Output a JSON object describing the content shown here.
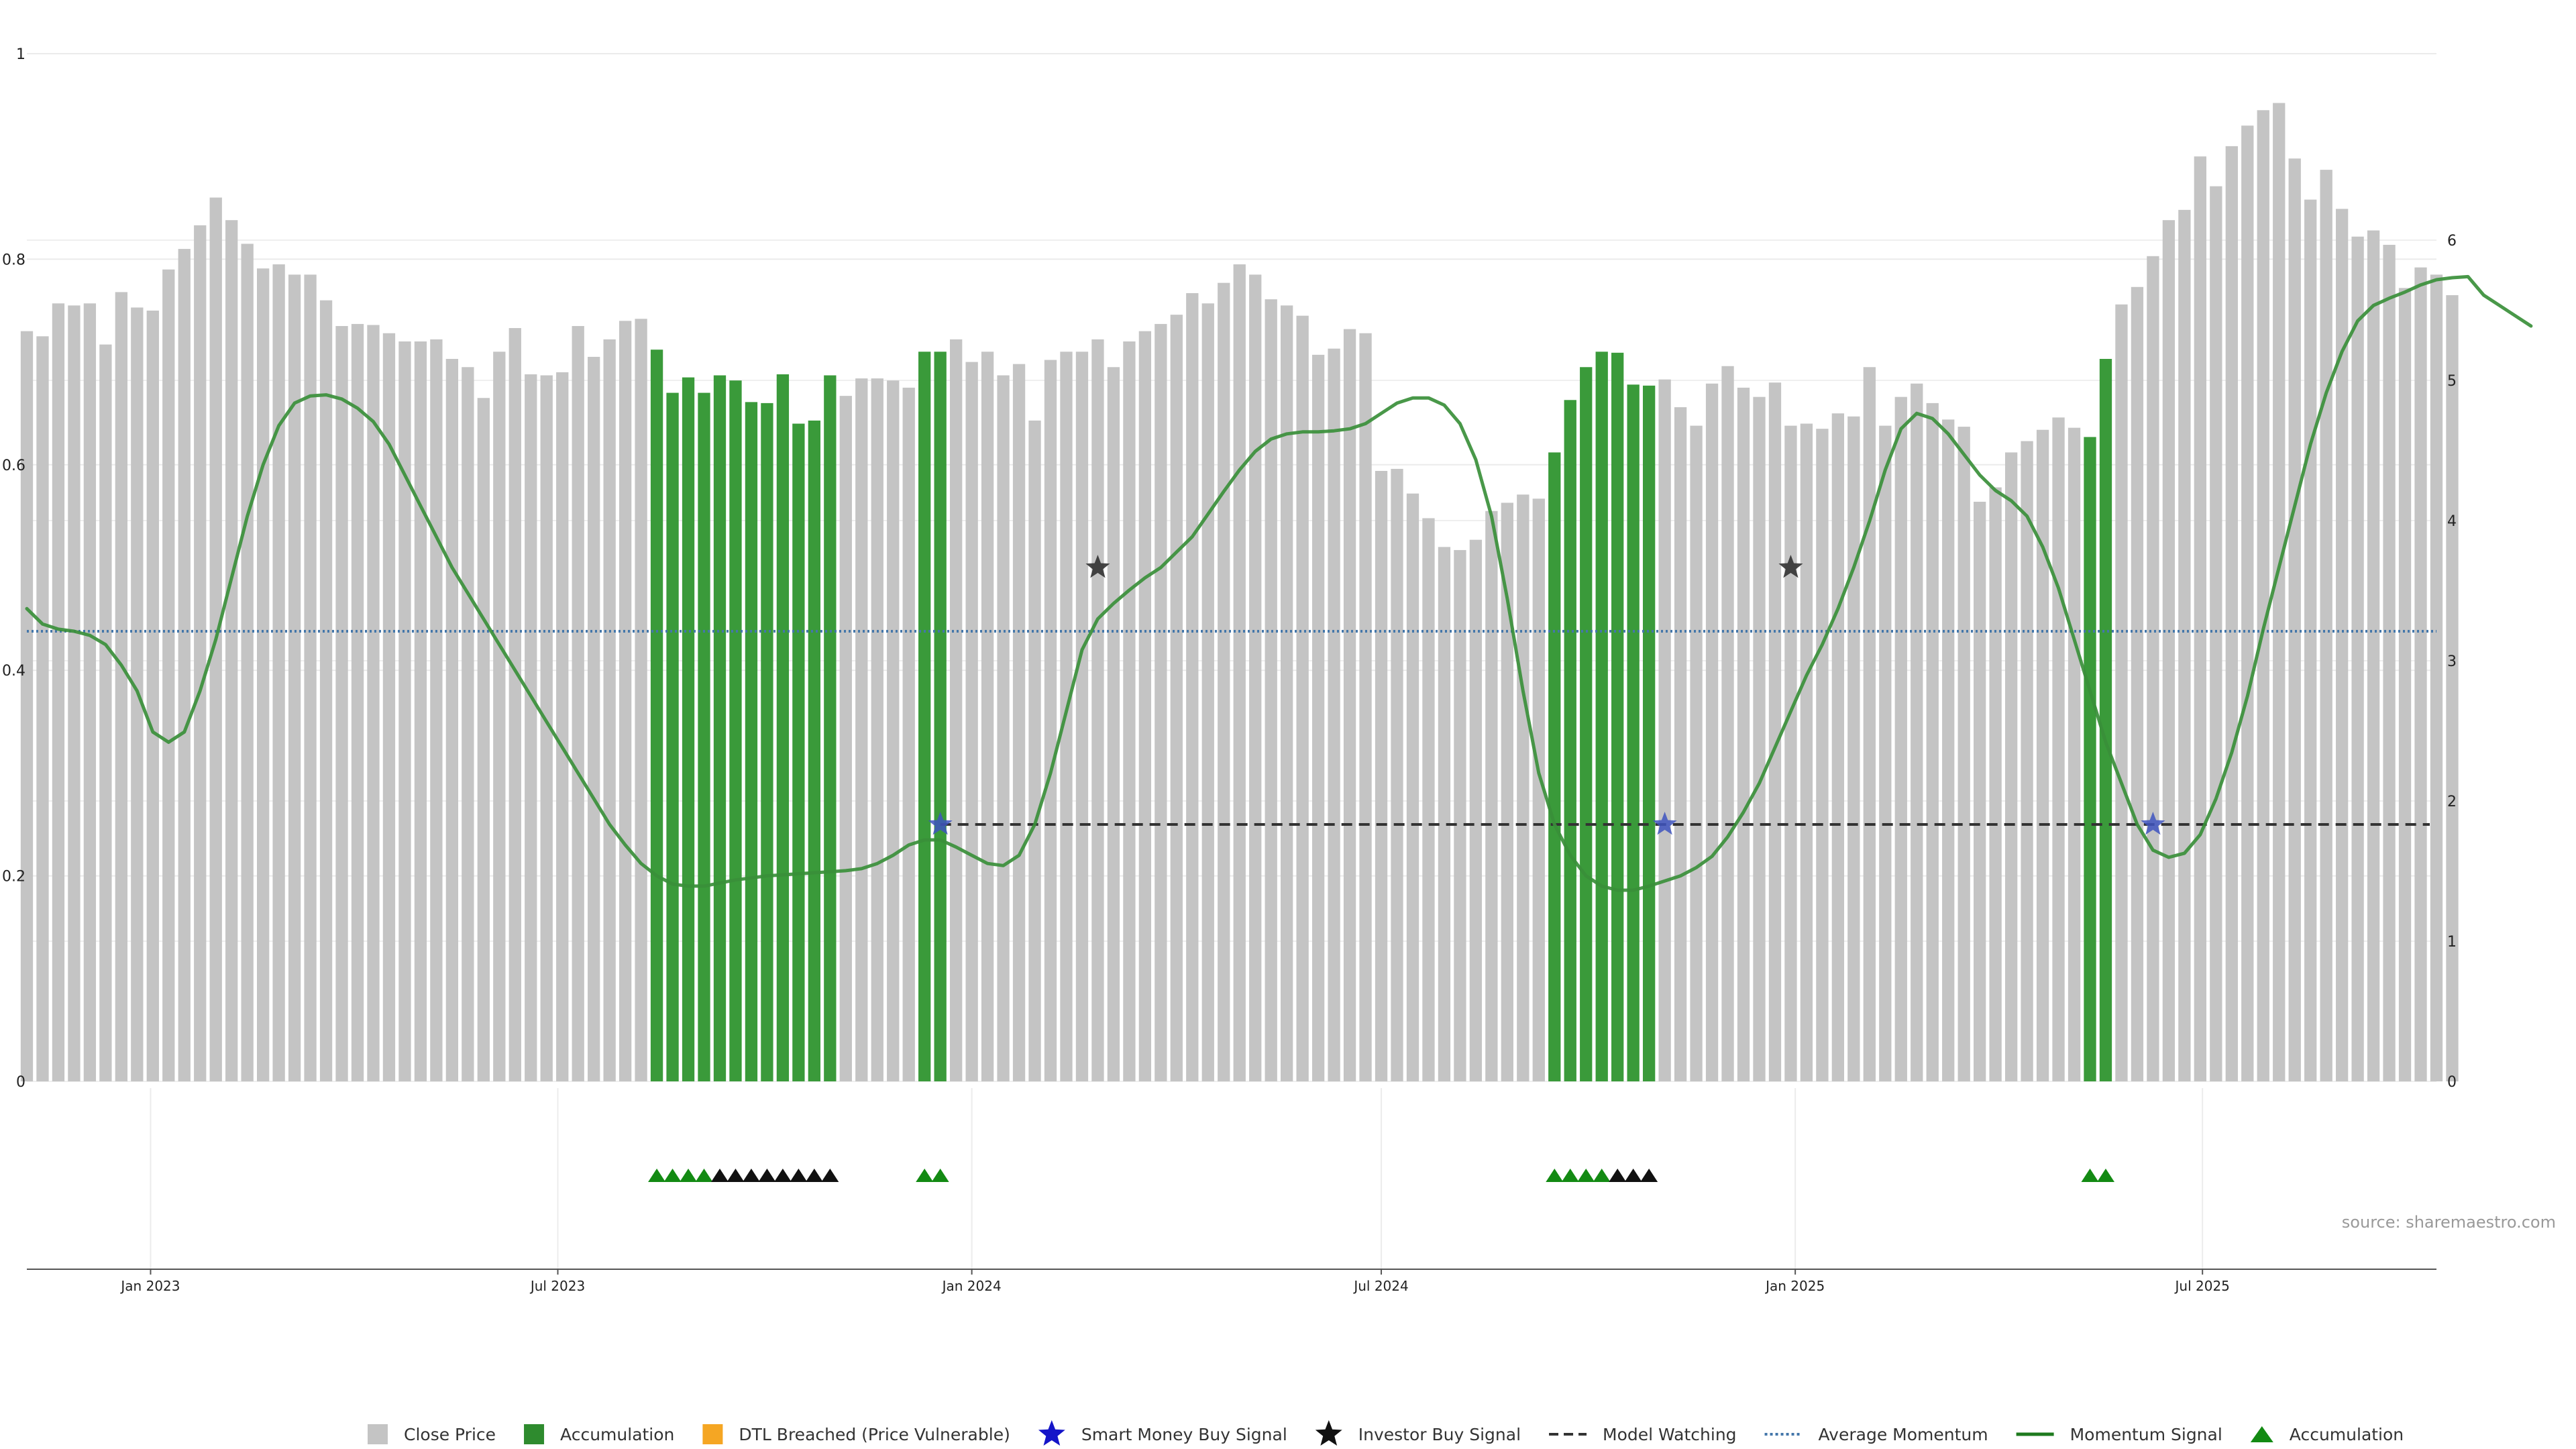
{
  "chart_data": {
    "type": "bar",
    "source": "source: sharemaestro.com",
    "left_axis": {
      "ylim": [
        0,
        1
      ],
      "ticks": [
        "0",
        "0.2",
        "0.4",
        "0.6",
        "0.8",
        "1"
      ]
    },
    "right_axis": {
      "ylim": [
        0,
        7.33
      ],
      "ticks": [
        "0",
        "1",
        "2",
        "3",
        "4",
        "5",
        "6"
      ]
    },
    "x_axis": {
      "range": [
        "2022-11-07",
        "2025-10-13"
      ],
      "ticks": [
        {
          "label": "Jan 2023",
          "date": "2023-01-01"
        },
        {
          "label": "Jul 2023",
          "date": "2023-07-01"
        },
        {
          "label": "Jan 2024",
          "date": "2024-01-01"
        },
        {
          "label": "Jul 2024",
          "date": "2024-07-01"
        },
        {
          "label": "Jan 2025",
          "date": "2025-01-01"
        },
        {
          "label": "Jul 2025",
          "date": "2025-07-01"
        }
      ]
    },
    "colors": {
      "close_price": "#c4c4c4",
      "accumulation": "#3a9a3a",
      "dtl_breached": "#f5a623",
      "smart_money": "#1515c8",
      "investor": "#111111",
      "model_watching": "#333333",
      "average_momentum": "#4477aa",
      "momentum": "#3a8f3a",
      "triangle_green": "#138a13",
      "triangle_black": "#111111"
    },
    "weekly_start": "2022-11-07",
    "close_price": [
      0.73,
      0.725,
      0.757,
      0.755,
      0.757,
      0.717,
      0.768,
      0.753,
      0.75,
      0.79,
      0.81,
      0.833,
      0.86,
      0.838,
      0.815,
      0.791,
      0.795,
      0.785,
      0.785,
      0.76,
      0.735,
      0.737,
      0.736,
      0.728,
      0.72,
      0.72,
      0.722,
      0.703,
      0.695,
      0.665,
      0.71,
      0.733,
      0.688,
      0.687,
      0.69,
      0.735,
      0.705,
      0.722,
      0.74,
      0.742,
      0.712,
      0.67,
      0.685,
      0.67,
      0.687,
      0.682,
      0.661,
      0.66,
      0.688,
      0.64,
      0.643,
      0.687,
      0.667,
      0.684,
      0.684,
      0.682,
      0.675,
      0.71,
      0.71,
      0.722,
      0.7,
      0.71,
      0.687,
      0.698,
      0.643,
      0.702,
      0.71,
      0.71,
      0.722,
      0.695,
      0.72,
      0.73,
      0.737,
      0.746,
      0.767,
      0.757,
      0.777,
      0.795,
      0.785,
      0.761,
      0.755,
      0.745,
      0.707,
      0.713,
      0.732,
      0.728,
      0.594,
      0.596,
      0.572,
      0.548,
      0.52,
      0.517,
      0.527,
      0.555,
      0.563,
      0.571,
      0.567,
      0.612,
      0.663,
      0.695,
      0.71,
      0.709,
      0.678,
      0.677,
      0.683,
      0.656,
      0.638,
      0.679,
      0.696,
      0.675,
      0.666,
      0.68,
      0.638,
      0.64,
      0.635,
      0.65,
      0.647,
      0.695,
      0.638,
      0.666,
      0.679,
      0.66,
      0.644,
      0.637,
      0.564,
      0.578,
      0.612,
      0.623,
      0.634,
      0.646,
      0.636,
      0.627,
      0.703,
      0.756,
      0.773,
      0.803,
      0.838,
      0.848,
      0.9,
      0.871,
      0.91,
      0.93,
      0.945,
      0.952,
      0.898,
      0.858,
      0.887,
      0.849,
      0.822,
      0.828,
      0.814,
      0.772,
      0.792,
      0.785,
      0.765
    ],
    "accumulation_ranges": [
      [
        40,
        51
      ],
      [
        57,
        58
      ],
      [
        97,
        103
      ],
      [
        131,
        132
      ]
    ],
    "momentum_signal": [
      0.46,
      0.445,
      0.44,
      0.438,
      0.434,
      0.425,
      0.405,
      0.38,
      0.34,
      0.33,
      0.34,
      0.38,
      0.43,
      0.49,
      0.55,
      0.6,
      0.638,
      0.66,
      0.667,
      0.668,
      0.664,
      0.655,
      0.642,
      0.62,
      0.59,
      0.56,
      0.53,
      0.5,
      0.475,
      0.45,
      0.425,
      0.4,
      0.375,
      0.35,
      0.325,
      0.3,
      0.275,
      0.25,
      0.23,
      0.212,
      0.2,
      0.192,
      0.19,
      0.19,
      0.193,
      0.196,
      0.198,
      0.2,
      0.201,
      0.202,
      0.203,
      0.204,
      0.205,
      0.207,
      0.212,
      0.22,
      0.23,
      0.235,
      0.235,
      0.228,
      0.22,
      0.212,
      0.21,
      0.22,
      0.25,
      0.3,
      0.36,
      0.42,
      0.45,
      0.465,
      0.478,
      0.49,
      0.5,
      0.515,
      0.53,
      0.552,
      0.574,
      0.595,
      0.613,
      0.625,
      0.63,
      0.632,
      0.632,
      0.633,
      0.635,
      0.64,
      0.65,
      0.66,
      0.665,
      0.665,
      0.658,
      0.64,
      0.605,
      0.55,
      0.47,
      0.38,
      0.3,
      0.25,
      0.22,
      0.2,
      0.19,
      0.186,
      0.186,
      0.19,
      0.195,
      0.2,
      0.208,
      0.219,
      0.238,
      0.262,
      0.29,
      0.325,
      0.36,
      0.395,
      0.425,
      0.46,
      0.5,
      0.545,
      0.595,
      0.635,
      0.65,
      0.645,
      0.63,
      0.61,
      0.59,
      0.575,
      0.565,
      0.55,
      0.52,
      0.48,
      0.43,
      0.38,
      0.33,
      0.29,
      0.25,
      0.225,
      0.218,
      0.222,
      0.24,
      0.275,
      0.32,
      0.375,
      0.44,
      0.5,
      0.56,
      0.62,
      0.67,
      0.71,
      0.74,
      0.755,
      0.762,
      0.768,
      0.775,
      0.78,
      0.782,
      0.783,
      0.765,
      0.755,
      0.745,
      0.735
    ],
    "average_momentum": 0.438,
    "model_watching_level": 0.25,
    "model_watching_start": 58,
    "smart_money_signals": [
      {
        "index": 58,
        "value": 0.25
      },
      {
        "index": 104,
        "value": 0.25
      },
      {
        "index": 135,
        "value": 0.25
      }
    ],
    "investor_signals": [
      {
        "index": 68,
        "value": 0.5
      },
      {
        "index": 112,
        "value": 0.5
      }
    ],
    "triangle_markers": [
      {
        "index": 40,
        "color": "green"
      },
      {
        "index": 41,
        "color": "green"
      },
      {
        "index": 42,
        "color": "green"
      },
      {
        "index": 43,
        "color": "green"
      },
      {
        "index": 44,
        "color": "black"
      },
      {
        "index": 45,
        "color": "black"
      },
      {
        "index": 46,
        "color": "black"
      },
      {
        "index": 47,
        "color": "black"
      },
      {
        "index": 48,
        "color": "black"
      },
      {
        "index": 49,
        "color": "black"
      },
      {
        "index": 50,
        "color": "black"
      },
      {
        "index": 51,
        "color": "black"
      },
      {
        "index": 57,
        "color": "green"
      },
      {
        "index": 58,
        "color": "green"
      },
      {
        "index": 97,
        "color": "green"
      },
      {
        "index": 98,
        "color": "green"
      },
      {
        "index": 99,
        "color": "green"
      },
      {
        "index": 100,
        "color": "green"
      },
      {
        "index": 101,
        "color": "black"
      },
      {
        "index": 102,
        "color": "black"
      },
      {
        "index": 103,
        "color": "black"
      },
      {
        "index": 131,
        "color": "green"
      },
      {
        "index": 132,
        "color": "green"
      }
    ],
    "legend": [
      {
        "label": "Close Price",
        "symbol": "square",
        "color": "#c4c4c4"
      },
      {
        "label": "Accumulation",
        "symbol": "square",
        "color": "#2e8b2e"
      },
      {
        "label": "DTL Breached (Price Vulnerable)",
        "symbol": "square",
        "color": "#f5a623"
      },
      {
        "label": "Smart Money Buy Signal",
        "symbol": "star",
        "color": "#1515c8"
      },
      {
        "label": "Investor Buy Signal",
        "symbol": "star",
        "color": "#111111"
      },
      {
        "label": "Model Watching",
        "symbol": "dash",
        "color": "#333333"
      },
      {
        "label": "Average Momentum",
        "symbol": "dot",
        "color": "#4477aa"
      },
      {
        "label": "Momentum Signal",
        "symbol": "line",
        "color": "#1e7a1e"
      },
      {
        "label": "Accumulation",
        "symbol": "triangle",
        "color": "#138a13"
      }
    ]
  }
}
